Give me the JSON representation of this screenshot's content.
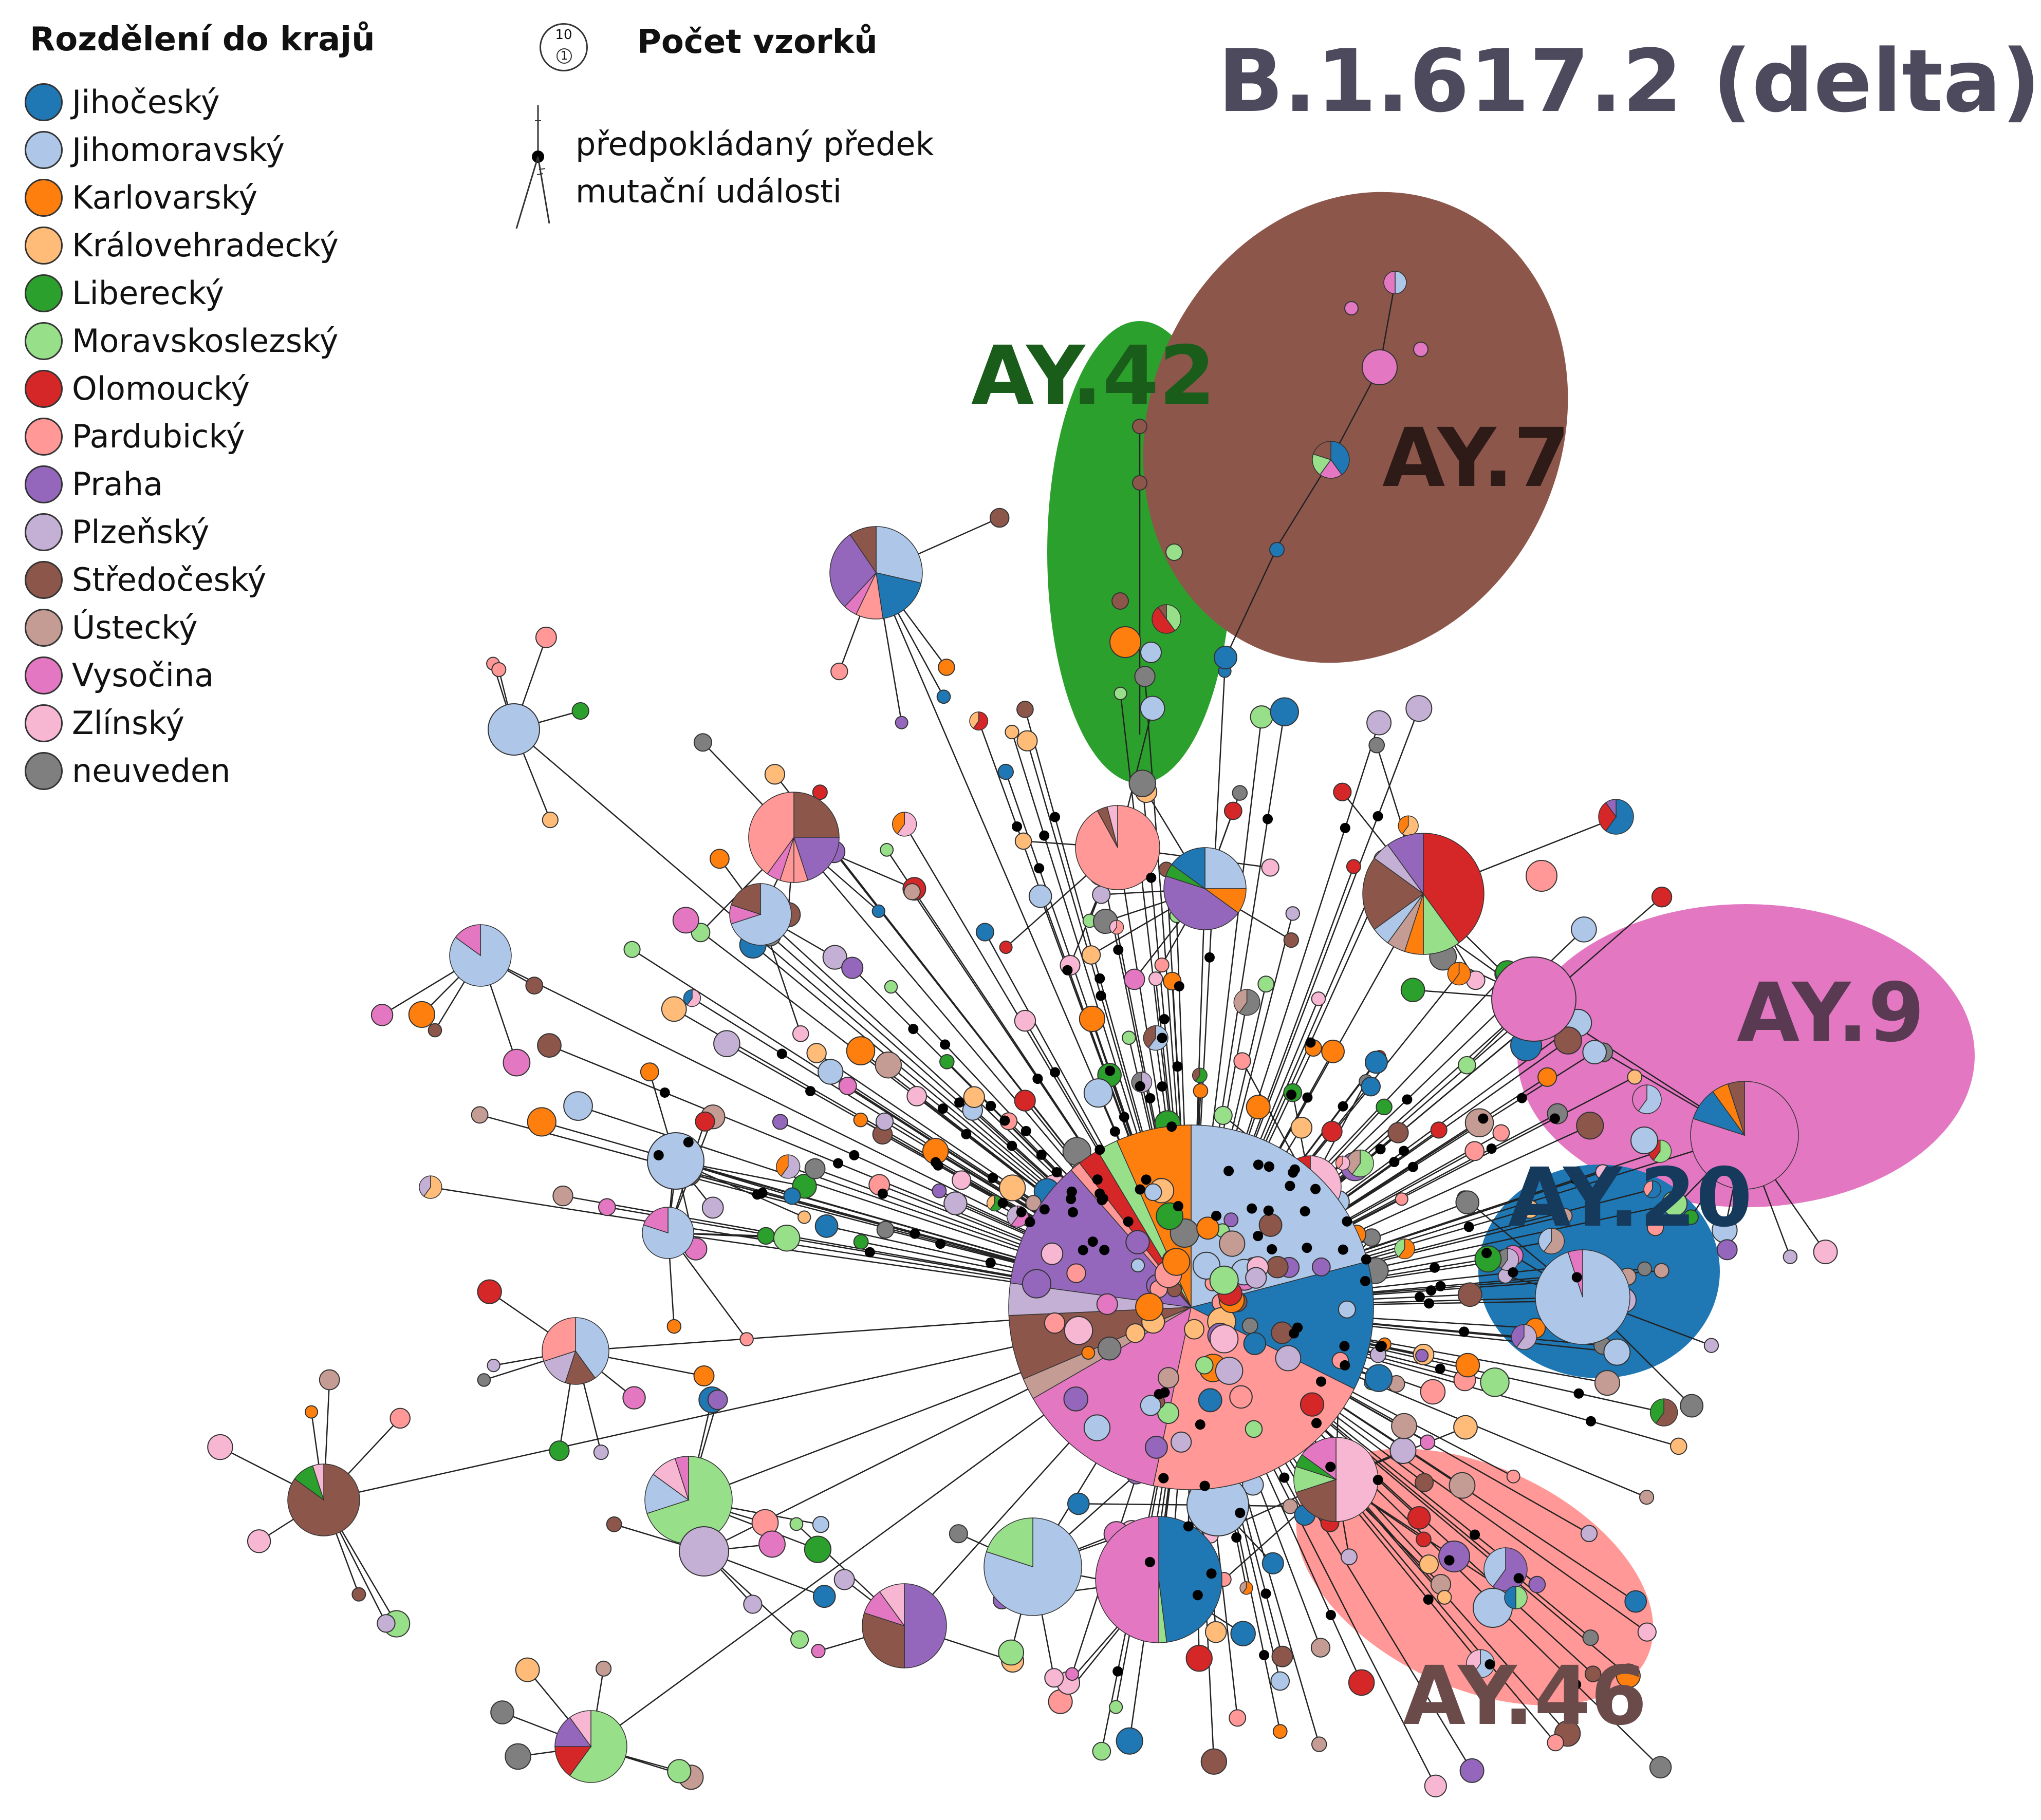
{
  "title": "B.1.617.2 (delta)",
  "legend": {
    "title": "Rozdělení do krajů",
    "items": [
      {
        "label": "Jihočeský",
        "color": "#1f77b4"
      },
      {
        "label": "Jihomoravský",
        "color": "#aec7e8"
      },
      {
        "label": "Karlovarský",
        "color": "#ff7f0e"
      },
      {
        "label": "Královehradecký",
        "color": "#ffbb78"
      },
      {
        "label": "Liberecký",
        "color": "#2ca02c"
      },
      {
        "label": "Moravskoslezský",
        "color": "#98df8a"
      },
      {
        "label": "Olomoucký",
        "color": "#d62728"
      },
      {
        "label": "Pardubický",
        "color": "#ff9896"
      },
      {
        "label": "Praha",
        "color": "#9467bd"
      },
      {
        "label": "Plzeňský",
        "color": "#c5b0d5"
      },
      {
        "label": "Středočeský",
        "color": "#8c564b"
      },
      {
        "label": "Ústecký",
        "color": "#c49c94"
      },
      {
        "label": "Vysočina",
        "color": "#e377c2"
      },
      {
        "label": "Zlínský",
        "color": "#f7b6d2"
      },
      {
        "label": "neuveden",
        "color": "#7f7f7f"
      }
    ]
  },
  "sample_count_legend": {
    "title": "Počet vzorků",
    "large_value": "10",
    "small_value": "1"
  },
  "ancestor_legend": {
    "line1": "předpokládaný předek",
    "line2": "mutační události"
  },
  "clades": [
    {
      "name": "AY.42",
      "color": "#2ca02c",
      "text_color": "#1a5c1a"
    },
    {
      "name": "AY.7",
      "color": "#8c564b",
      "text_color": "#2e1b17"
    },
    {
      "name": "AY.9",
      "color": "#e377c2",
      "text_color": "#5a3a52"
    },
    {
      "name": "AY.20",
      "color": "#1f77b4",
      "text_color": "#163a5c"
    },
    {
      "name": "AY.46",
      "color": "#ff9896",
      "text_color": "#6b4a4a"
    }
  ]
}
